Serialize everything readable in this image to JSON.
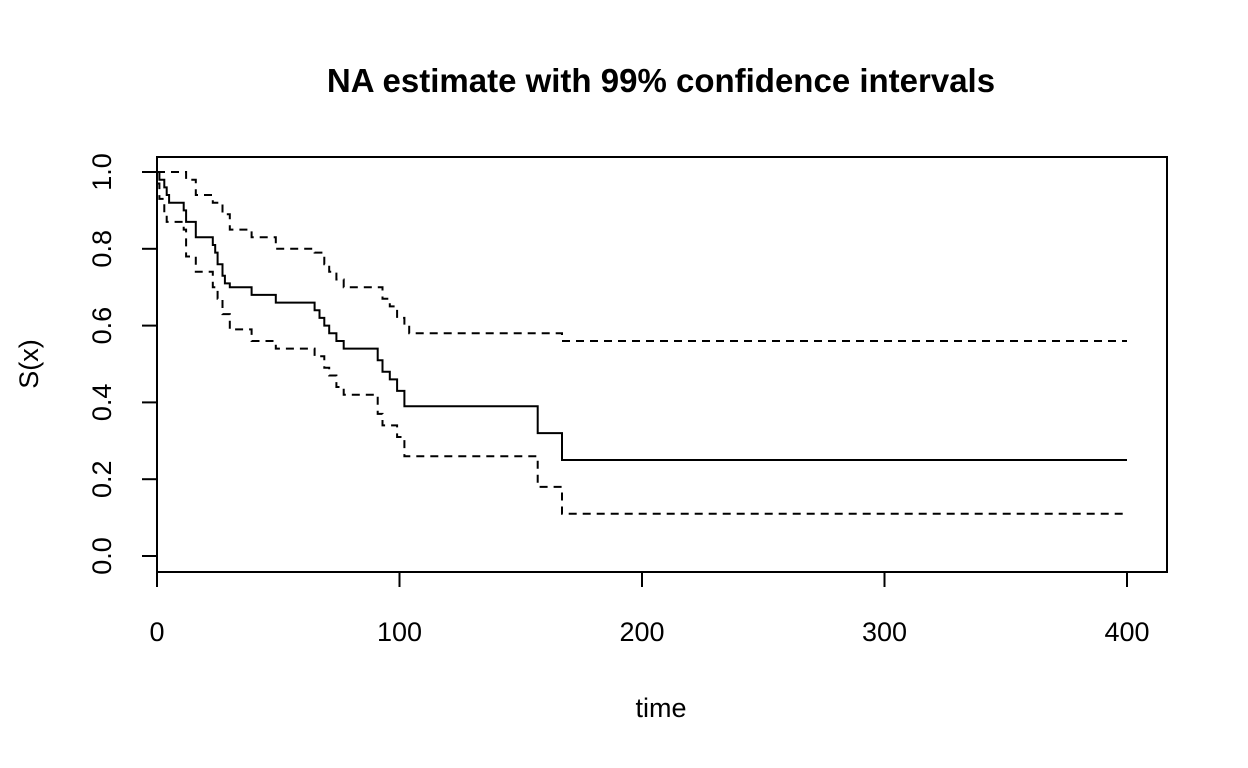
{
  "chart_data": {
    "type": "line",
    "step": true,
    "title": "NA estimate with 99% confidence intervals",
    "xlabel": "time",
    "ylabel": "S(x)",
    "xlim": [
      0,
      400
    ],
    "ylim": [
      0,
      1
    ],
    "x_ticks": [
      0,
      100,
      200,
      300,
      400
    ],
    "x_tick_labels": [
      "0",
      "100",
      "200",
      "300",
      "400"
    ],
    "y_ticks": [
      0,
      0.2,
      0.4,
      0.6,
      0.8,
      1.0
    ],
    "y_tick_labels": [
      "0.0",
      "0.2",
      "0.4",
      "0.6",
      "0.8",
      "1.0"
    ],
    "grid": false,
    "series": [
      {
        "style": "solid",
        "color": "#000000",
        "points": [
          [
            0,
            1.0
          ],
          [
            1,
            0.98
          ],
          [
            3,
            0.96
          ],
          [
            4,
            0.94
          ],
          [
            5,
            0.92
          ],
          [
            11,
            0.9
          ],
          [
            12,
            0.87
          ],
          [
            16,
            0.83
          ],
          [
            23,
            0.81
          ],
          [
            24,
            0.79
          ],
          [
            25,
            0.76
          ],
          [
            27,
            0.73
          ],
          [
            28,
            0.71
          ],
          [
            30,
            0.7
          ],
          [
            39,
            0.68
          ],
          [
            49,
            0.66
          ],
          [
            65,
            0.64
          ],
          [
            67,
            0.62
          ],
          [
            69,
            0.6
          ],
          [
            71,
            0.58
          ],
          [
            74,
            0.56
          ],
          [
            77,
            0.54
          ],
          [
            91,
            0.51
          ],
          [
            93,
            0.48
          ],
          [
            96,
            0.46
          ],
          [
            99,
            0.43
          ],
          [
            102,
            0.39
          ],
          [
            157,
            0.32
          ],
          [
            167,
            0.25
          ],
          [
            400,
            0.25
          ]
        ]
      },
      {
        "style": "dashed",
        "color": "#000000",
        "points": [
          [
            0,
            1.0
          ],
          [
            12,
            0.98
          ],
          [
            16,
            0.94
          ],
          [
            23,
            0.92
          ],
          [
            27,
            0.89
          ],
          [
            30,
            0.85
          ],
          [
            39,
            0.83
          ],
          [
            49,
            0.8
          ],
          [
            65,
            0.79
          ],
          [
            69,
            0.76
          ],
          [
            71,
            0.74
          ],
          [
            74,
            0.72
          ],
          [
            77,
            0.7
          ],
          [
            93,
            0.67
          ],
          [
            96,
            0.65
          ],
          [
            99,
            0.62
          ],
          [
            102,
            0.6
          ],
          [
            104,
            0.58
          ],
          [
            167,
            0.56
          ],
          [
            400,
            0.56
          ]
        ]
      },
      {
        "style": "dashed",
        "color": "#000000",
        "points": [
          [
            0,
            0.97
          ],
          [
            1,
            0.93
          ],
          [
            3,
            0.89
          ],
          [
            4,
            0.87
          ],
          [
            11,
            0.85
          ],
          [
            12,
            0.78
          ],
          [
            16,
            0.74
          ],
          [
            23,
            0.7
          ],
          [
            25,
            0.67
          ],
          [
            27,
            0.63
          ],
          [
            30,
            0.59
          ],
          [
            39,
            0.56
          ],
          [
            49,
            0.54
          ],
          [
            65,
            0.52
          ],
          [
            69,
            0.49
          ],
          [
            71,
            0.47
          ],
          [
            74,
            0.44
          ],
          [
            77,
            0.42
          ],
          [
            91,
            0.37
          ],
          [
            93,
            0.34
          ],
          [
            99,
            0.31
          ],
          [
            102,
            0.26
          ],
          [
            157,
            0.18
          ],
          [
            167,
            0.11
          ],
          [
            400,
            0.11
          ]
        ]
      }
    ]
  }
}
